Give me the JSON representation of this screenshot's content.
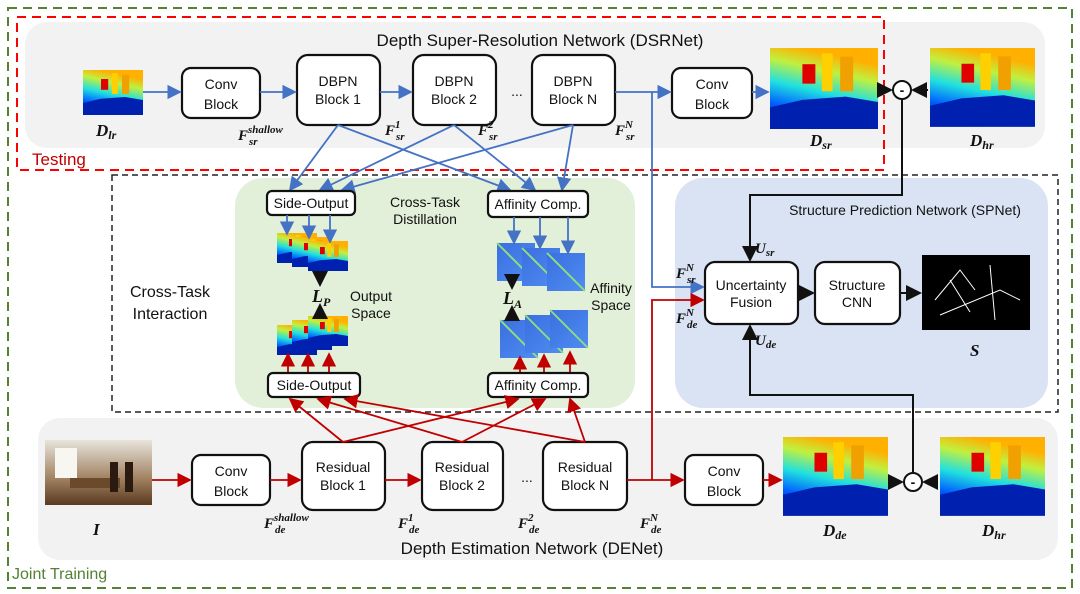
{
  "colors": {
    "sr_arrows": "#4472c4",
    "de_arrows": "#c00000",
    "joint_border": "#548235",
    "testing_border": "#ff0000",
    "distill_panel": "#e2efd9",
    "spnet_panel": "#dae3f3"
  },
  "frames": {
    "joint_training": "Joint Training",
    "testing": "Testing",
    "cross_task_interaction": [
      "Cross-Task",
      "Interaction"
    ]
  },
  "dsrnet": {
    "title": "Depth Super-Resolution Network (DSRNet)",
    "input": "D",
    "input_sub": "lr",
    "conv1": [
      "Conv",
      "Block"
    ],
    "blocks": [
      [
        "DBPN",
        "Block 1"
      ],
      [
        "DBPN",
        "Block 2"
      ],
      [
        "DBPN",
        "Block N"
      ]
    ],
    "ellipsis": "...",
    "conv2": [
      "Conv",
      "Block"
    ],
    "output": "D",
    "output_sub": "sr",
    "gt": "D",
    "gt_sub": "hr",
    "features": [
      {
        "sup": "shallow",
        "sub": "sr"
      },
      {
        "sup": "1",
        "sub": "sr"
      },
      {
        "sup": "2",
        "sub": "sr"
      },
      {
        "sup": "N",
        "sub": "sr"
      }
    ]
  },
  "distillation": {
    "title": [
      "Cross-Task",
      "Distillation"
    ],
    "side_output": "Side-Output",
    "affinity": "Affinity Comp.",
    "loss_p": "L",
    "loss_p_sub": "P",
    "loss_a": "L",
    "loss_a_sub": "A",
    "output_space": [
      "Output",
      "Space"
    ],
    "affinity_space": [
      "Affinity",
      "Space"
    ]
  },
  "spnet": {
    "title": "Structure Prediction Network (SPNet)",
    "fusion": [
      "Uncertainty",
      "Fusion"
    ],
    "cnn": [
      "Structure",
      "CNN"
    ],
    "output": "S",
    "u_sr": "U",
    "u_sr_sub": "sr",
    "u_de": "U",
    "u_de_sub": "de",
    "f_sr": {
      "sup": "N",
      "sub": "sr"
    },
    "f_de": {
      "sup": "N",
      "sub": "de"
    }
  },
  "denet": {
    "title": "Depth Estimation Network (DENet)",
    "input": "I",
    "conv1": [
      "Conv",
      "Block"
    ],
    "blocks": [
      [
        "Residual",
        "Block 1"
      ],
      [
        "Residual",
        "Block 2"
      ],
      [
        "Residual",
        "Block N"
      ]
    ],
    "ellipsis": "...",
    "conv2": [
      "Conv",
      "Block"
    ],
    "output": "D",
    "output_sub": "de",
    "gt": "D",
    "gt_sub": "hr",
    "features": [
      {
        "sup": "shallow",
        "sub": "de"
      },
      {
        "sup": "1",
        "sub": "de"
      },
      {
        "sup": "2",
        "sub": "de"
      },
      {
        "sup": "N",
        "sub": "de"
      }
    ]
  },
  "minus": "-"
}
